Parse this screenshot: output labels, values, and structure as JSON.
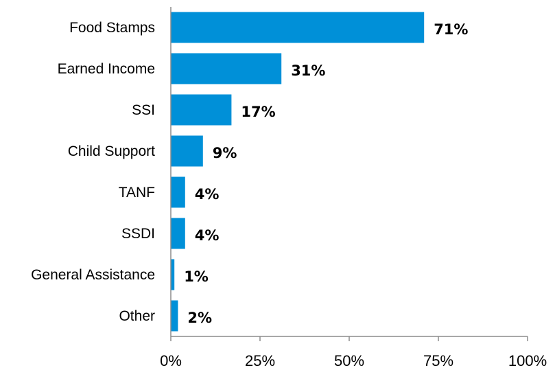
{
  "chart_data": {
    "type": "bar",
    "orientation": "horizontal",
    "title": "",
    "xlabel": "",
    "ylabel": "",
    "categories": [
      "Food Stamps",
      "Earned Income",
      "SSI",
      "Child Support",
      "TANF",
      "SSDI",
      "General Assistance",
      "Other"
    ],
    "values": [
      71,
      31,
      17,
      9,
      4,
      4,
      1,
      2
    ],
    "value_labels": [
      "71%",
      "31%",
      "17%",
      "9%",
      "4%",
      "4%",
      "1%",
      "2%"
    ],
    "xlim": [
      0,
      100
    ],
    "x_ticks": [
      0,
      25,
      50,
      75,
      100
    ],
    "x_tick_labels": [
      "0%",
      "25%",
      "50%",
      "75%",
      "100%"
    ],
    "grid": false,
    "legend": "none",
    "bar_color": "#0090d8"
  }
}
